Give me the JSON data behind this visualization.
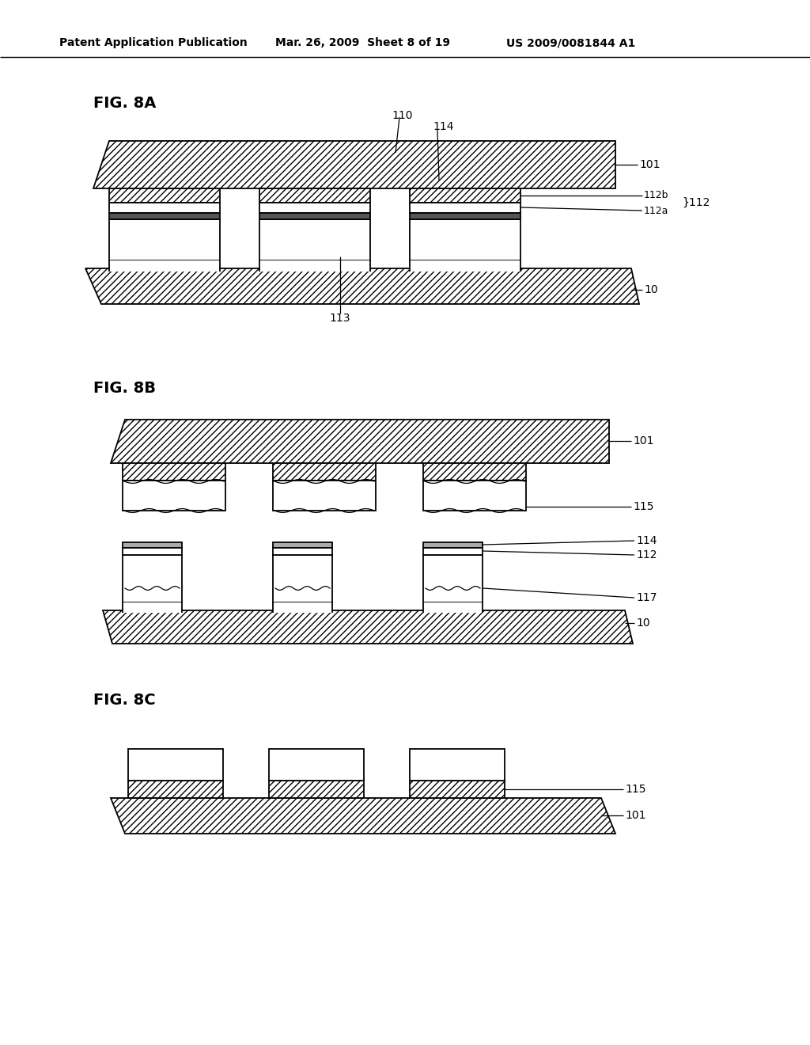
{
  "bg_color": "#ffffff",
  "header_left": "Patent Application Publication",
  "header_mid": "Mar. 26, 2009  Sheet 8 of 19",
  "header_right": "US 2009/0081844 A1",
  "lw": 1.3,
  "hatch_lw": 0.5
}
